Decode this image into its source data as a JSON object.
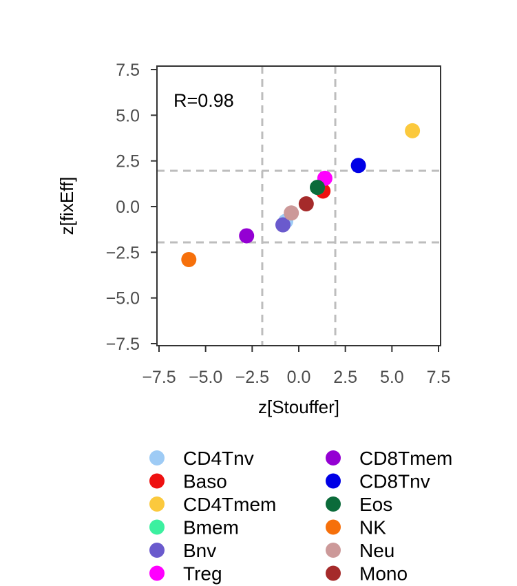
{
  "chart_data": {
    "type": "scatter",
    "xlabel": "z[Stouffer]",
    "ylabel": "z[fixEff]",
    "xlim": [
      -7.5,
      7.5
    ],
    "ylim": [
      -7.5,
      7.5
    ],
    "xticks": [
      -7.5,
      -5.0,
      -2.5,
      0.0,
      2.5,
      5.0,
      7.5
    ],
    "yticks": [
      -7.5,
      -5.0,
      -2.5,
      0.0,
      2.5,
      5.0,
      7.5
    ],
    "xtick_labels": [
      "−7.5",
      "−5.0",
      "−2.5",
      "0.0",
      "2.5",
      "5.0",
      "7.5"
    ],
    "ytick_labels": [
      "−7.5",
      "−5.0",
      "−2.5",
      "0.0",
      "2.5",
      "5.0",
      "7.5"
    ],
    "grid": false,
    "reference_lines": {
      "vertical": [
        -1.96,
        1.96
      ],
      "horizontal": [
        -1.96,
        1.96
      ],
      "style": "dashed",
      "color": "#bdbdbd"
    },
    "annotation": "R=0.98",
    "legend_placement": "bottom",
    "series": [
      {
        "name": "CD4Tnv",
        "color": "#9ecbf5",
        "x": -0.7,
        "y": -0.8
      },
      {
        "name": "Baso",
        "color": "#ee1111",
        "x": 1.3,
        "y": 0.85
      },
      {
        "name": "CD4Tmem",
        "color": "#fbc93d",
        "x": 6.1,
        "y": 4.15
      },
      {
        "name": "Bmem",
        "color": "#3cf0a0",
        "x": 1.0,
        "y": 1.05
      },
      {
        "name": "Bnv",
        "color": "#6a5acd",
        "x": -0.85,
        "y": -1.0
      },
      {
        "name": "Treg",
        "color": "#ff00ff",
        "x": 1.4,
        "y": 1.55
      },
      {
        "name": "CD8Tmem",
        "color": "#9400d3",
        "x": -2.8,
        "y": -1.6
      },
      {
        "name": "CD8Tnv",
        "color": "#0000e6",
        "x": 3.2,
        "y": 2.25
      },
      {
        "name": "Eos",
        "color": "#0b6b3a",
        "x": 1.0,
        "y": 1.05
      },
      {
        "name": "NK",
        "color": "#f6700b",
        "x": -5.9,
        "y": -2.9
      },
      {
        "name": "Neu",
        "color": "#cc9999",
        "x": -0.4,
        "y": -0.35
      },
      {
        "name": "Mono",
        "color": "#a52a2a",
        "x": 0.4,
        "y": 0.15
      }
    ],
    "legend_columns": [
      [
        "CD4Tnv",
        "Baso",
        "CD4Tmem",
        "Bmem",
        "Bnv",
        "Treg"
      ],
      [
        "CD8Tmem",
        "CD8Tnv",
        "Eos",
        "NK",
        "Neu",
        "Mono"
      ]
    ]
  }
}
